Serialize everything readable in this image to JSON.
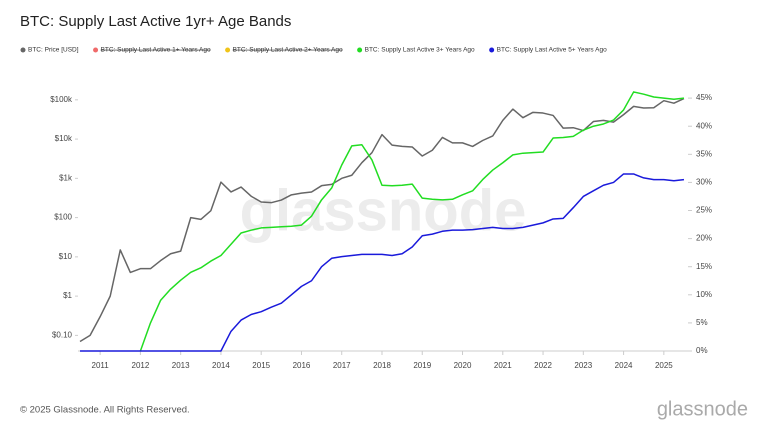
{
  "chart_data": {
    "type": "line",
    "title": "BTC: Supply Last Active 1yr+ Age Bands",
    "watermark": "glassnode",
    "footer": "© 2025 Glassnode. All Rights Reserved.",
    "logo": "glassnode",
    "x": [
      2010.5,
      2010.75,
      2011,
      2011.25,
      2011.5,
      2011.75,
      2012,
      2012.25,
      2012.5,
      2012.75,
      2013,
      2013.25,
      2013.5,
      2013.75,
      2014,
      2014.25,
      2014.5,
      2014.75,
      2015,
      2015.25,
      2015.5,
      2015.75,
      2016,
      2016.25,
      2016.5,
      2016.75,
      2017,
      2017.25,
      2017.5,
      2017.75,
      2018,
      2018.25,
      2018.5,
      2018.75,
      2019,
      2019.25,
      2019.5,
      2019.75,
      2020,
      2020.25,
      2020.5,
      2020.75,
      2021,
      2021.25,
      2021.5,
      2021.75,
      2022,
      2022.25,
      2022.5,
      2022.75,
      2023,
      2023.25,
      2023.5,
      2023.75,
      2024,
      2024.25,
      2024.5,
      2024.75,
      2025,
      2025.25,
      2025.5
    ],
    "series": [
      {
        "name": "BTC: Price [USD]",
        "color": "#666666",
        "axis": "y",
        "values": [
          0.07,
          0.1,
          0.3,
          1,
          15,
          4,
          5,
          5,
          8,
          12,
          14,
          100,
          90,
          150,
          800,
          450,
          600,
          350,
          250,
          240,
          280,
          380,
          420,
          450,
          650,
          700,
          1000,
          1200,
          2500,
          4500,
          13000,
          7000,
          6500,
          6300,
          3700,
          5200,
          11000,
          8000,
          8000,
          6500,
          9200,
          12000,
          30000,
          58000,
          35000,
          48000,
          46000,
          40000,
          19000,
          19500,
          16500,
          28000,
          30000,
          27000,
          42000,
          68000,
          62000,
          63000,
          95000,
          82000,
          108000
        ]
      },
      {
        "name": "BTC: Supply Last Active 1+ Years Ago",
        "color": "#f06a6a",
        "axis": "y2",
        "hidden": true
      },
      {
        "name": "BTC: Supply Last Active 2+ Years Ago",
        "color": "#f0c419",
        "axis": "y2",
        "hidden": true
      },
      {
        "name": "BTC: Supply Last Active 3+ Years Ago",
        "color": "#22dd22",
        "axis": "y2",
        "values": [
          null,
          null,
          null,
          null,
          null,
          null,
          0,
          5,
          9,
          11,
          12.6,
          14,
          14.8,
          16,
          17,
          19,
          21,
          21.5,
          21.9,
          22,
          22.1,
          22.2,
          22.4,
          24,
          26.9,
          29,
          33.1,
          36.5,
          36.7,
          34,
          29.5,
          29.4,
          29.5,
          29.7,
          27.2,
          27,
          26.9,
          27,
          27.8,
          28.5,
          30.5,
          32.2,
          33.5,
          34.9,
          35.2,
          35.3,
          35.4,
          37.9,
          38,
          38.2,
          39.3,
          40,
          40.4,
          41.1,
          42.9,
          46.1,
          45.7,
          45.2,
          45,
          44.8,
          45
        ]
      },
      {
        "name": "BTC: Supply Last Active 5+ Years Ago",
        "color": "#1a1adb",
        "axis": "y2",
        "values": [
          0,
          0,
          0,
          0,
          0,
          0,
          0,
          0,
          0,
          0,
          0,
          0,
          0,
          0,
          0,
          3.5,
          5.5,
          6.5,
          7,
          7.8,
          8.5,
          10,
          11.5,
          12.5,
          15,
          16.5,
          16.8,
          17,
          17.2,
          17.2,
          17.2,
          17,
          17.3,
          18.5,
          20.5,
          20.8,
          21.3,
          21.5,
          21.5,
          21.6,
          21.8,
          22,
          21.8,
          21.8,
          22,
          22.4,
          22.8,
          23.5,
          23.6,
          25.5,
          27.5,
          28.5,
          29.5,
          30,
          31.5,
          31.5,
          30.8,
          30.5,
          30.5,
          30.3,
          30.5
        ]
      }
    ],
    "xlim": [
      2010.45,
      2025.6
    ],
    "xticks": [
      2011,
      2012,
      2013,
      2014,
      2015,
      2016,
      2017,
      2018,
      2019,
      2020,
      2021,
      2022,
      2023,
      2024,
      2025
    ],
    "ylim": [
      0.04,
      200000
    ],
    "y_log": true,
    "yticks": [
      {
        "value": 0.1,
        "label": "$0.10"
      },
      {
        "value": 1,
        "label": "$1"
      },
      {
        "value": 10,
        "label": "$10"
      },
      {
        "value": 100,
        "label": "$100"
      },
      {
        "value": 1000,
        "label": "$1k"
      },
      {
        "value": 10000,
        "label": "$10k"
      },
      {
        "value": 100000,
        "label": "$100k"
      }
    ],
    "y2lim": [
      0,
      46.8
    ],
    "y2ticks": [
      {
        "value": 0,
        "label": "0%"
      },
      {
        "value": 5,
        "label": "5%"
      },
      {
        "value": 10,
        "label": "10%"
      },
      {
        "value": 15,
        "label": "15%"
      },
      {
        "value": 20,
        "label": "20%"
      },
      {
        "value": 25,
        "label": "25%"
      },
      {
        "value": 30,
        "label": "30%"
      },
      {
        "value": 35,
        "label": "35%"
      },
      {
        "value": 40,
        "label": "40%"
      },
      {
        "value": 45,
        "label": "45%"
      }
    ]
  }
}
